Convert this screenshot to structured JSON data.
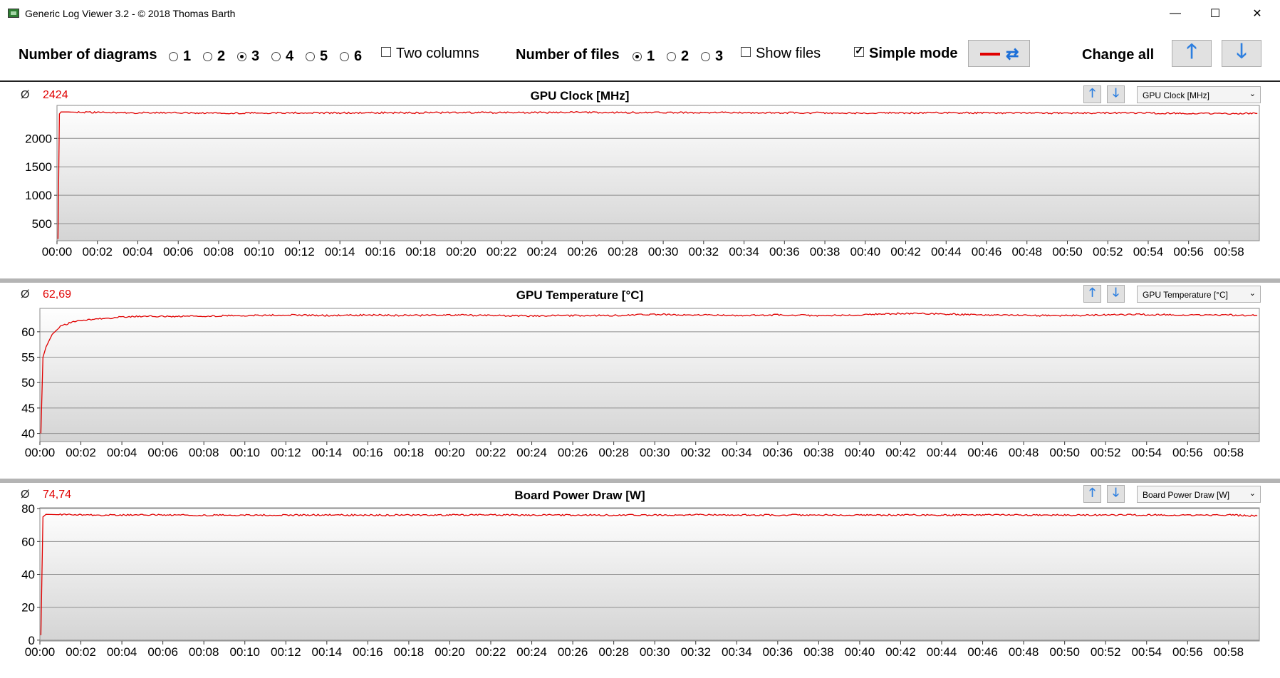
{
  "window": {
    "title": "Generic Log Viewer 3.2 - © 2018 Thomas Barth",
    "minimize": "—",
    "maximize": "☐",
    "close": "✕"
  },
  "toolbar": {
    "diagrams_label": "Number of diagrams",
    "diagram_options": [
      "1",
      "2",
      "3",
      "4",
      "5",
      "6"
    ],
    "diagrams_selected": "3",
    "two_columns_label": "Two columns",
    "two_columns_checked": false,
    "files_label": "Number of files",
    "file_options": [
      "1",
      "2",
      "3"
    ],
    "files_selected": "1",
    "show_files_label": "Show files",
    "show_files_checked": false,
    "simple_mode_label": "Simple mode",
    "simple_mode_checked": true,
    "change_all_label": "Change all",
    "up_icon": "arrow-up-icon",
    "down_icon": "arrow-down-icon",
    "accent_color": "#e00000"
  },
  "panels": [
    {
      "avg_symbol": "Ø",
      "avg": "2424",
      "title": "GPU Clock [MHz]",
      "select": "GPU Clock [MHz]"
    },
    {
      "avg_symbol": "Ø",
      "avg": "62,69",
      "title": "GPU Temperature [°C]",
      "select": "GPU Temperature [°C]"
    },
    {
      "avg_symbol": "Ø",
      "avg": "74,74",
      "title": "Board Power Draw [W]",
      "select": "Board Power Draw [W]"
    }
  ],
  "chart_data": [
    {
      "type": "line",
      "title": "GPU Clock [MHz]",
      "x_ticks": [
        "00:00",
        "00:02",
        "00:04",
        "00:06",
        "00:08",
        "00:10",
        "00:12",
        "00:14",
        "00:16",
        "00:18",
        "00:20",
        "00:22",
        "00:24",
        "00:26",
        "00:28",
        "00:30",
        "00:32",
        "00:34",
        "00:36",
        "00:38",
        "00:40",
        "00:42",
        "00:44",
        "00:46",
        "00:48",
        "00:50",
        "00:52",
        "00:54",
        "00:56",
        "00:58"
      ],
      "y_ticks": [
        500,
        1000,
        1500,
        2000
      ],
      "ylim": [
        200,
        2580
      ],
      "xlim_minutes": [
        0,
        59.5
      ],
      "series": [
        {
          "color": "#e00000",
          "x_minutes": [
            0.05,
            0.12,
            0.2,
            0.5,
            1,
            2,
            4,
            6,
            8,
            10,
            12,
            14,
            16,
            18,
            20,
            22,
            24,
            26,
            28,
            30,
            32,
            34,
            36,
            38,
            40,
            42,
            44,
            46,
            48,
            50,
            52,
            54,
            56,
            58,
            59.4
          ],
          "values": [
            230,
            2430,
            2465,
            2465,
            2460,
            2455,
            2450,
            2448,
            2445,
            2447,
            2450,
            2448,
            2452,
            2450,
            2455,
            2452,
            2455,
            2458,
            2455,
            2452,
            2455,
            2450,
            2450,
            2448,
            2445,
            2448,
            2450,
            2448,
            2445,
            2445,
            2448,
            2445,
            2440,
            2438,
            2440
          ]
        }
      ],
      "grid": true
    },
    {
      "type": "line",
      "title": "GPU Temperature [°C]",
      "x_ticks": [
        "00:00",
        "00:02",
        "00:04",
        "00:06",
        "00:08",
        "00:10",
        "00:12",
        "00:14",
        "00:16",
        "00:18",
        "00:20",
        "00:22",
        "00:24",
        "00:26",
        "00:28",
        "00:30",
        "00:32",
        "00:34",
        "00:36",
        "00:38",
        "00:40",
        "00:42",
        "00:44",
        "00:46",
        "00:48",
        "00:50",
        "00:52",
        "00:54",
        "00:56",
        "00:58"
      ],
      "y_ticks": [
        40,
        45,
        50,
        55,
        60
      ],
      "ylim": [
        38.4,
        64.6
      ],
      "xlim_minutes": [
        0,
        59.5
      ],
      "series": [
        {
          "color": "#e00000",
          "x_minutes": [
            0.05,
            0.15,
            0.3,
            0.6,
            1,
            1.5,
            2,
            3,
            4,
            5,
            6,
            8,
            10,
            12,
            14,
            16,
            18,
            20,
            22,
            24,
            26,
            28,
            30,
            32,
            34,
            36,
            38,
            40,
            42,
            44,
            46,
            48,
            50,
            52,
            54,
            56,
            58,
            59.4
          ],
          "values": [
            40,
            55,
            57,
            59.5,
            61,
            61.8,
            62.2,
            62.6,
            62.9,
            63,
            63,
            63.1,
            63.2,
            63.3,
            63.2,
            63.3,
            63.2,
            63.3,
            63.2,
            63.1,
            63.2,
            63.2,
            63.4,
            63.3,
            63.2,
            63.3,
            63.2,
            63.3,
            63.6,
            63.5,
            63.3,
            63.2,
            63.2,
            63.3,
            63.4,
            63.3,
            63.3,
            63.2
          ]
        }
      ],
      "grid": true
    },
    {
      "type": "line",
      "title": "Board Power Draw [W]",
      "x_ticks": [
        "00:00",
        "00:02",
        "00:04",
        "00:06",
        "00:08",
        "00:10",
        "00:12",
        "00:14",
        "00:16",
        "00:18",
        "00:20",
        "00:22",
        "00:24",
        "00:26",
        "00:28",
        "00:30",
        "00:32",
        "00:34",
        "00:36",
        "00:38",
        "00:40",
        "00:42",
        "00:44",
        "00:46",
        "00:48",
        "00:50",
        "00:52",
        "00:54",
        "00:56",
        "00:58"
      ],
      "y_ticks": [
        0,
        20,
        40,
        60,
        80
      ],
      "ylim": [
        -0.5,
        80.5
      ],
      "xlim_minutes": [
        0,
        59.5
      ],
      "series": [
        {
          "color": "#e00000",
          "x_minutes": [
            0.05,
            0.15,
            0.3,
            1,
            2,
            4,
            6,
            8,
            10,
            12,
            14,
            16,
            18,
            20,
            22,
            24,
            26,
            28,
            30,
            32,
            34,
            36,
            38,
            40,
            42,
            44,
            46,
            48,
            50,
            52,
            54,
            56,
            58,
            59.4
          ],
          "values": [
            3,
            75,
            76.5,
            76.3,
            76.2,
            76,
            76.2,
            76,
            76.1,
            76,
            76.2,
            76,
            76,
            76.1,
            76.2,
            76,
            76.1,
            76,
            76,
            76.2,
            76.1,
            76,
            76.2,
            76,
            76.1,
            76,
            76.2,
            76,
            76.1,
            76,
            76.2,
            76,
            76.1,
            75.5
          ]
        }
      ],
      "grid": true
    }
  ]
}
